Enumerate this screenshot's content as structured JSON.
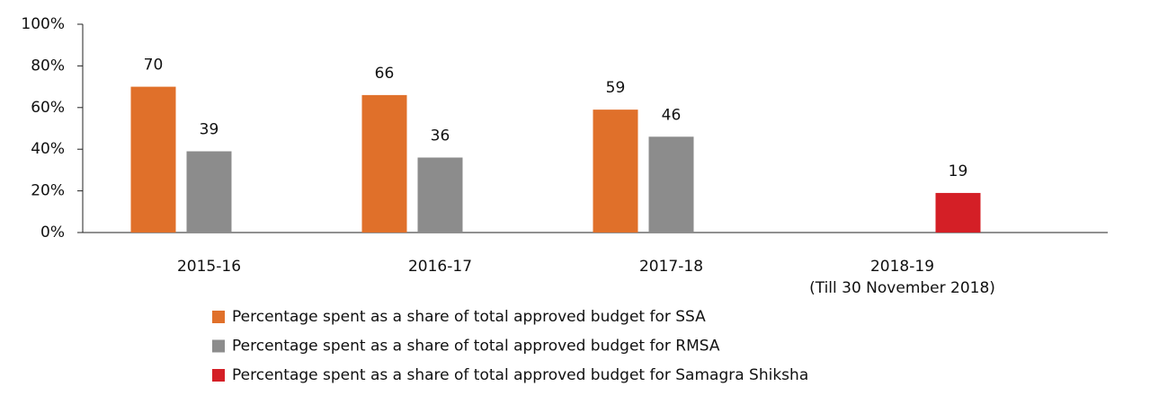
{
  "chart_data": {
    "type": "bar",
    "categories": [
      "2015-16",
      "2016-17",
      "2017-18",
      "2018-19\n(Till 30 November 2018)"
    ],
    "series": [
      {
        "name": "Percentage spent as a share of total approved budget for SSA",
        "color": "#e0702a",
        "values": [
          70,
          66,
          59,
          null
        ]
      },
      {
        "name": "Percentage spent as a share of total approved budget for RMSA",
        "color": "#8c8c8c",
        "values": [
          39,
          36,
          46,
          null
        ]
      },
      {
        "name": "Percentage spent as a share of total approved budget for Samagra Shiksha",
        "color": "#d41f26",
        "values": [
          null,
          null,
          null,
          19
        ]
      }
    ],
    "ylim": [
      0,
      100
    ],
    "yticks": [
      {
        "value": 0,
        "label": "0%"
      },
      {
        "value": 20,
        "label": "20%"
      },
      {
        "value": 40,
        "label": "40%"
      },
      {
        "value": 60,
        "label": "60%"
      },
      {
        "value": 80,
        "label": "80%"
      },
      {
        "value": 100,
        "label": "100%"
      }
    ],
    "legend": "bottom"
  }
}
